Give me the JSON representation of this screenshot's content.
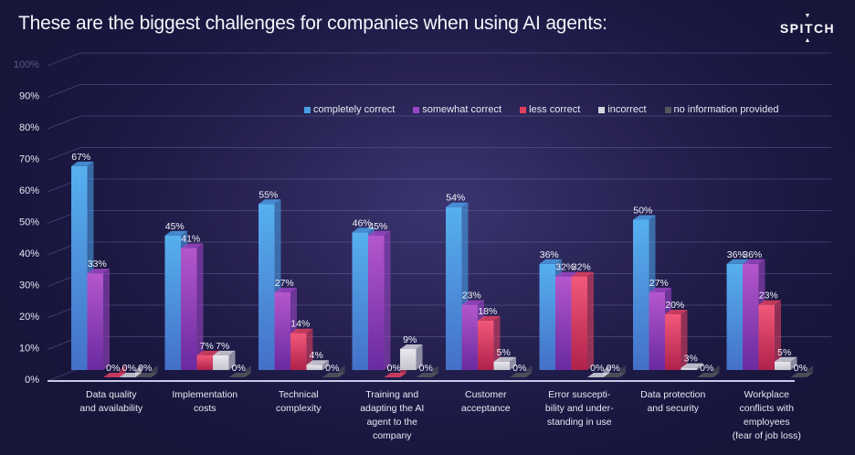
{
  "title": "These are the biggest challenges for companies when using AI agents:",
  "logo": {
    "text": "SPITCH",
    "icon": "triangle-marks-icon"
  },
  "chart_data": {
    "type": "bar",
    "title": "These are the biggest challenges for companies when using AI agents:",
    "xlabel": "",
    "ylabel": "",
    "ylim": [
      0,
      100
    ],
    "yticks": [
      "0%",
      "10%",
      "20%",
      "30%",
      "40%",
      "50%",
      "60%",
      "70%",
      "80%",
      "90%",
      "100%"
    ],
    "grid": true,
    "legend_position": "top-right",
    "style": "3d-clustered-column",
    "categories": [
      "Data quality\nand availability",
      "Implementation\ncosts",
      "Technical\ncomplexity",
      "Training and\nadapting the AI\nagent to the\ncompany",
      "Customer\nacceptance",
      "Error suscepti-\nbility and under-\nstanding in use",
      "Data protection\nand security",
      "Workplace\nconflicts with\nemployees\n(fear of job loss)"
    ],
    "series": [
      {
        "name": "completely correct",
        "color": "#4a9ee6",
        "values": [
          67,
          45,
          55,
          46,
          54,
          36,
          50,
          36
        ]
      },
      {
        "name": "somewhat correct",
        "color": "#9b45c4",
        "values": [
          33,
          41,
          27,
          45,
          23,
          32,
          27,
          36
        ]
      },
      {
        "name": "less correct",
        "color": "#e0405f",
        "values": [
          0,
          7,
          14,
          0,
          18,
          32,
          20,
          23
        ]
      },
      {
        "name": "incorrect",
        "color": "#d6d6de",
        "values": [
          0,
          7,
          4,
          9,
          5,
          0,
          3,
          5
        ]
      },
      {
        "name": "no information provided",
        "color": "#55555c",
        "values": [
          0,
          0,
          0,
          0,
          0,
          0,
          0,
          0
        ]
      }
    ],
    "value_suffix": "%"
  }
}
